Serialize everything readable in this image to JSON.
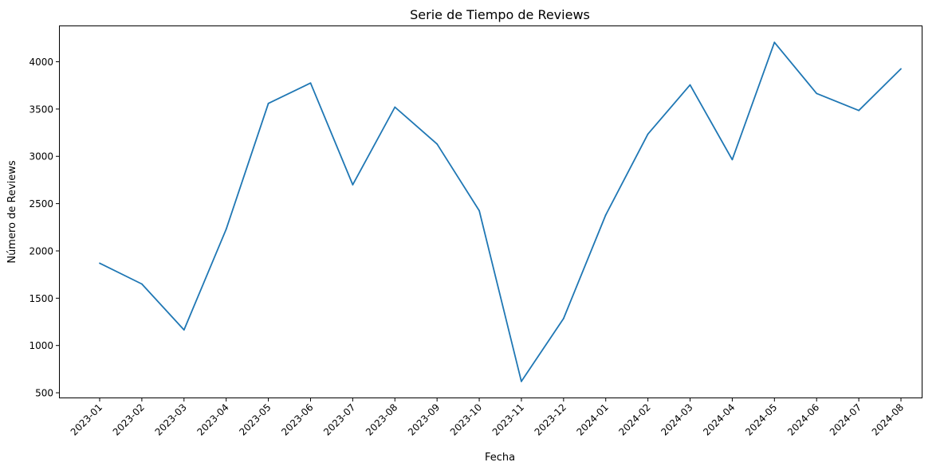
{
  "chart_data": {
    "type": "line",
    "title": "Serie de Tiempo de Reviews",
    "xlabel": "Fecha",
    "ylabel": "Número de Reviews",
    "categories": [
      "2023-01",
      "2023-02",
      "2023-03",
      "2023-04",
      "2023-05",
      "2023-06",
      "2023-07",
      "2023-08",
      "2023-09",
      "2023-10",
      "2023-11",
      "2023-12",
      "2024-01",
      "2024-02",
      "2024-03",
      "2024-04",
      "2024-05",
      "2024-06",
      "2024-07",
      "2024-08"
    ],
    "series": [
      {
        "values": [
          1870,
          1650,
          1165,
          2230,
          3560,
          3775,
          2700,
          3520,
          3130,
          2425,
          620,
          1285,
          2380,
          3235,
          3755,
          2965,
          4205,
          3665,
          3485,
          3925
        ],
        "color": "#1f77b4"
      }
    ],
    "yticks": [
      500,
      1000,
      1500,
      2000,
      2500,
      3000,
      3500,
      4000
    ],
    "ylim": [
      450,
      4375
    ],
    "grid": false,
    "legend": "none"
  }
}
